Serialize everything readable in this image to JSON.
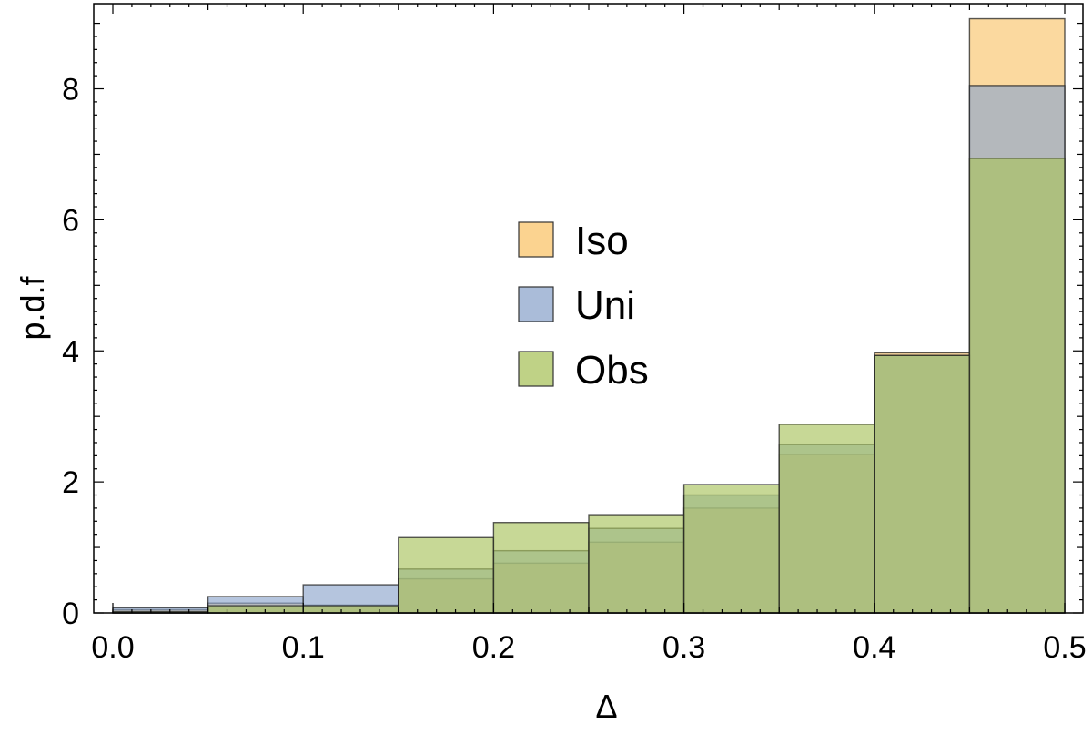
{
  "chart_data": {
    "type": "bar",
    "subtype": "overlaid-histogram",
    "title": "",
    "xlabel": "Δ",
    "ylabel": "p.d.f",
    "xlim": [
      0.0,
      0.5
    ],
    "ylim": [
      0,
      9.3
    ],
    "bin_edges": [
      0.0,
      0.05,
      0.1,
      0.15,
      0.2,
      0.25,
      0.3,
      0.35,
      0.4,
      0.45,
      0.5
    ],
    "x_ticks": [
      "0.0",
      "0.1",
      "0.2",
      "0.3",
      "0.4",
      "0.5"
    ],
    "y_ticks": [
      "0",
      "2",
      "4",
      "6",
      "8"
    ],
    "grid": false,
    "legend_position": "center",
    "series": [
      {
        "name": "Iso",
        "color": "#F9C46B",
        "values": [
          0.05,
          0.15,
          0.12,
          0.52,
          0.76,
          1.08,
          1.6,
          2.42,
          3.97,
          9.07
        ]
      },
      {
        "name": "Uni",
        "color": "#8EA6CC",
        "values": [
          0.08,
          0.25,
          0.43,
          0.67,
          0.95,
          1.29,
          1.8,
          2.57,
          3.93,
          8.05
        ]
      },
      {
        "name": "Obs",
        "color": "#A9C35E",
        "values": [
          0.02,
          0.11,
          0.11,
          1.15,
          1.38,
          1.5,
          1.96,
          2.88,
          3.93,
          6.94
        ]
      }
    ]
  }
}
